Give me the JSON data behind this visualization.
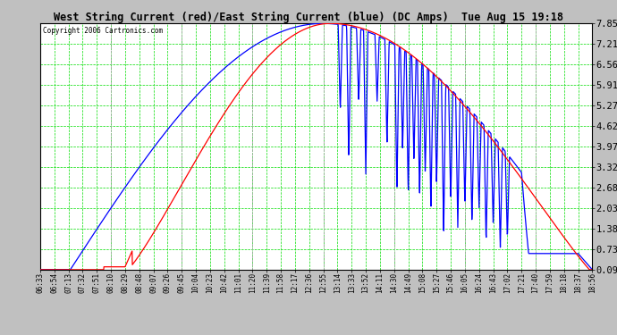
{
  "title": "West String Current (red)/East String Current (blue) (DC Amps)  Tue Aug 15 19:18",
  "copyright": "Copyright 2006 Cartronics.com",
  "ylabel_ticks": [
    0.09,
    0.73,
    1.38,
    2.03,
    2.68,
    3.32,
    3.97,
    4.62,
    5.27,
    5.91,
    6.56,
    7.21,
    7.85
  ],
  "xlabels": [
    "06:33",
    "06:54",
    "07:13",
    "07:32",
    "07:51",
    "08:10",
    "08:29",
    "08:48",
    "09:07",
    "09:26",
    "09:45",
    "10:04",
    "10:23",
    "10:42",
    "11:01",
    "11:20",
    "11:39",
    "11:58",
    "12:17",
    "12:36",
    "12:55",
    "13:14",
    "13:33",
    "13:52",
    "14:11",
    "14:30",
    "14:49",
    "15:08",
    "15:27",
    "15:46",
    "16:05",
    "16:24",
    "16:43",
    "17:02",
    "17:21",
    "17:40",
    "17:59",
    "18:18",
    "18:37",
    "18:56"
  ],
  "ymin": 0.09,
  "ymax": 7.85,
  "plot_bg": "#ffffff",
  "fig_bg": "#c0c0c0",
  "green_grid": "#00dd00",
  "gray_grid": "#aaaaaa"
}
